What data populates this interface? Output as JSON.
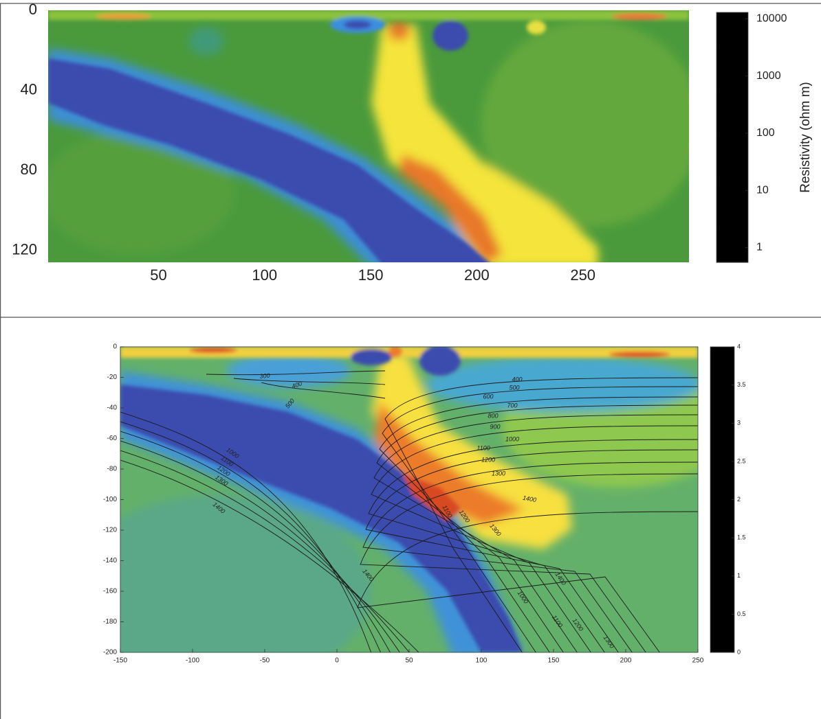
{
  "chart_data": [
    {
      "type": "heatmap",
      "xlim": [
        -2,
        300
      ],
      "xticks": [
        50,
        100,
        150,
        200,
        250
      ],
      "ylim": [
        0,
        126
      ],
      "yticks": [
        0,
        40,
        80,
        120
      ],
      "y_inverted": true,
      "colorbar": {
        "label": "Resistivity (ohm m)",
        "log_scale": true,
        "lim": [
          0.55,
          13000
        ],
        "ticks": [
          1,
          10,
          100,
          1000,
          10000
        ],
        "bands": 40,
        "band_lines": true
      }
    },
    {
      "type": "heatmap",
      "xlim": [
        -150,
        250
      ],
      "xticks": [
        -150,
        -100,
        -50,
        0,
        50,
        100,
        150,
        200,
        250
      ],
      "ylim": [
        -200,
        0
      ],
      "yticks": [
        0,
        -20,
        -40,
        -60,
        -80,
        -100,
        -120,
        -140,
        -160,
        -180,
        -200
      ],
      "y_inverted": false,
      "colorbar": {
        "log_scale": false,
        "lim": [
          0,
          4
        ],
        "ticks": [
          0,
          0.5,
          1,
          1.5,
          2,
          2.5,
          3,
          3.5,
          4
        ],
        "bands": 64,
        "band_lines": false
      },
      "contour_labels": [
        300,
        400,
        500,
        400,
        500,
        600,
        700,
        800,
        900,
        1000,
        1100,
        1200,
        1300,
        1400,
        1000,
        1100,
        1200,
        1300,
        1400,
        1100,
        1200,
        1300,
        1400,
        1000,
        1100,
        1200,
        1300,
        1400
      ]
    }
  ]
}
